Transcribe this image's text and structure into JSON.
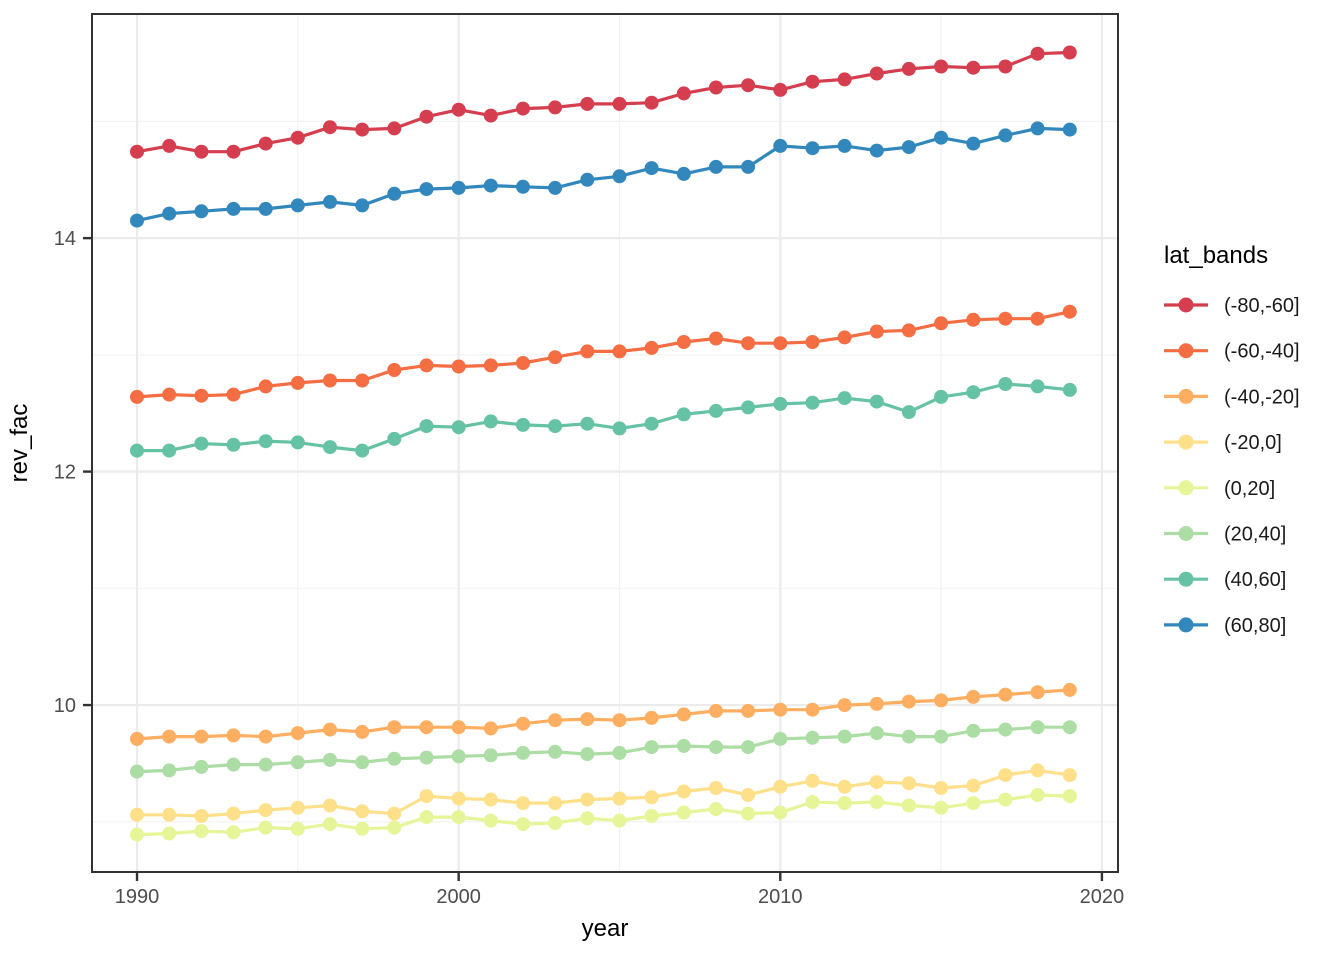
{
  "figure": {
    "background": "#ffffff",
    "panel_background": "#ffffff",
    "panel_border_color": "#333333",
    "grid_major_color": "#ebebeb",
    "grid_minor_color": "#f2f2f2",
    "tick_mark_color": "#333333",
    "tick_label_color": "#4d4d4d",
    "axis_title_color": "#000000",
    "legend_title_color": "#000000",
    "legend_label_color": "#1a1a1a"
  },
  "chart_data": {
    "type": "line",
    "title": "",
    "xlabel": "year",
    "ylabel": "rev_fac",
    "legend_title": "lat_bands",
    "legend_position": "right",
    "grid": true,
    "marker": "filled-circle",
    "xlim": [
      1988.6,
      2020.5
    ],
    "ylim": [
      8.57,
      15.92
    ],
    "x_ticks": [
      1990,
      2000,
      2010,
      2020
    ],
    "x_tick_labels": [
      "1990",
      "2000",
      "2010",
      "2020"
    ],
    "x_minor_ticks": [
      1995,
      2005,
      2015
    ],
    "y_ticks": [
      10,
      12,
      14
    ],
    "y_tick_labels": [
      "10",
      "12",
      "14"
    ],
    "y_minor_ticks": [
      9,
      11,
      13,
      15
    ],
    "x": [
      1990,
      1991,
      1992,
      1993,
      1994,
      1995,
      1996,
      1997,
      1998,
      1999,
      2000,
      2001,
      2002,
      2003,
      2004,
      2005,
      2006,
      2007,
      2008,
      2009,
      2010,
      2011,
      2012,
      2013,
      2014,
      2015,
      2016,
      2017,
      2018,
      2019
    ],
    "series": [
      {
        "name": "(-80,-60]",
        "color": "#d53e4f",
        "values": [
          14.74,
          14.79,
          14.74,
          14.74,
          14.81,
          14.86,
          14.95,
          14.93,
          14.94,
          15.04,
          15.1,
          15.05,
          15.11,
          15.12,
          15.15,
          15.15,
          15.16,
          15.24,
          15.29,
          15.31,
          15.27,
          15.34,
          15.36,
          15.41,
          15.45,
          15.47,
          15.46,
          15.47,
          15.58,
          15.59
        ]
      },
      {
        "name": "(-60,-40]",
        "color": "#f46d43",
        "values": [
          12.64,
          12.66,
          12.65,
          12.66,
          12.73,
          12.76,
          12.78,
          12.78,
          12.87,
          12.91,
          12.9,
          12.91,
          12.93,
          12.98,
          13.03,
          13.03,
          13.06,
          13.11,
          13.14,
          13.1,
          13.1,
          13.11,
          13.15,
          13.2,
          13.21,
          13.27,
          13.3,
          13.31,
          13.31,
          13.37
        ]
      },
      {
        "name": "(-40,-20]",
        "color": "#fdae61",
        "values": [
          9.71,
          9.73,
          9.73,
          9.74,
          9.73,
          9.76,
          9.79,
          9.77,
          9.81,
          9.81,
          9.81,
          9.8,
          9.84,
          9.87,
          9.88,
          9.87,
          9.89,
          9.92,
          9.95,
          9.95,
          9.96,
          9.96,
          10.0,
          10.01,
          10.03,
          10.04,
          10.07,
          10.09,
          10.11,
          10.13
        ]
      },
      {
        "name": "(-20,0]",
        "color": "#fee08b",
        "values": [
          9.06,
          9.06,
          9.05,
          9.07,
          9.1,
          9.12,
          9.14,
          9.09,
          9.07,
          9.22,
          9.2,
          9.19,
          9.16,
          9.16,
          9.19,
          9.2,
          9.21,
          9.26,
          9.29,
          9.23,
          9.3,
          9.35,
          9.3,
          9.34,
          9.33,
          9.29,
          9.31,
          9.4,
          9.44,
          9.4
        ]
      },
      {
        "name": "(0,20]",
        "color": "#e6f598",
        "values": [
          8.89,
          8.9,
          8.92,
          8.91,
          8.95,
          8.94,
          8.98,
          8.94,
          8.95,
          9.04,
          9.04,
          9.01,
          8.98,
          8.99,
          9.03,
          9.01,
          9.05,
          9.08,
          9.11,
          9.07,
          9.08,
          9.17,
          9.16,
          9.17,
          9.14,
          9.12,
          9.16,
          9.19,
          9.23,
          9.22
        ]
      },
      {
        "name": "(20,40]",
        "color": "#abdda4",
        "values": [
          9.43,
          9.44,
          9.47,
          9.49,
          9.49,
          9.51,
          9.53,
          9.51,
          9.54,
          9.55,
          9.56,
          9.57,
          9.59,
          9.6,
          9.58,
          9.59,
          9.64,
          9.65,
          9.64,
          9.64,
          9.71,
          9.72,
          9.73,
          9.76,
          9.73,
          9.73,
          9.78,
          9.79,
          9.81,
          9.81
        ]
      },
      {
        "name": "(40,60]",
        "color": "#66c2a5",
        "values": [
          12.18,
          12.18,
          12.24,
          12.23,
          12.26,
          12.25,
          12.21,
          12.18,
          12.28,
          12.39,
          12.38,
          12.43,
          12.4,
          12.39,
          12.41,
          12.37,
          12.41,
          12.49,
          12.52,
          12.55,
          12.58,
          12.59,
          12.63,
          12.6,
          12.51,
          12.64,
          12.68,
          12.75,
          12.73,
          12.7
        ]
      },
      {
        "name": "(60,80]",
        "color": "#3288bd",
        "values": [
          14.15,
          14.21,
          14.23,
          14.25,
          14.25,
          14.28,
          14.31,
          14.28,
          14.38,
          14.42,
          14.43,
          14.45,
          14.44,
          14.43,
          14.5,
          14.53,
          14.6,
          14.55,
          14.61,
          14.61,
          14.79,
          14.77,
          14.79,
          14.75,
          14.78,
          14.86,
          14.81,
          14.88,
          14.94,
          14.93
        ]
      }
    ]
  }
}
